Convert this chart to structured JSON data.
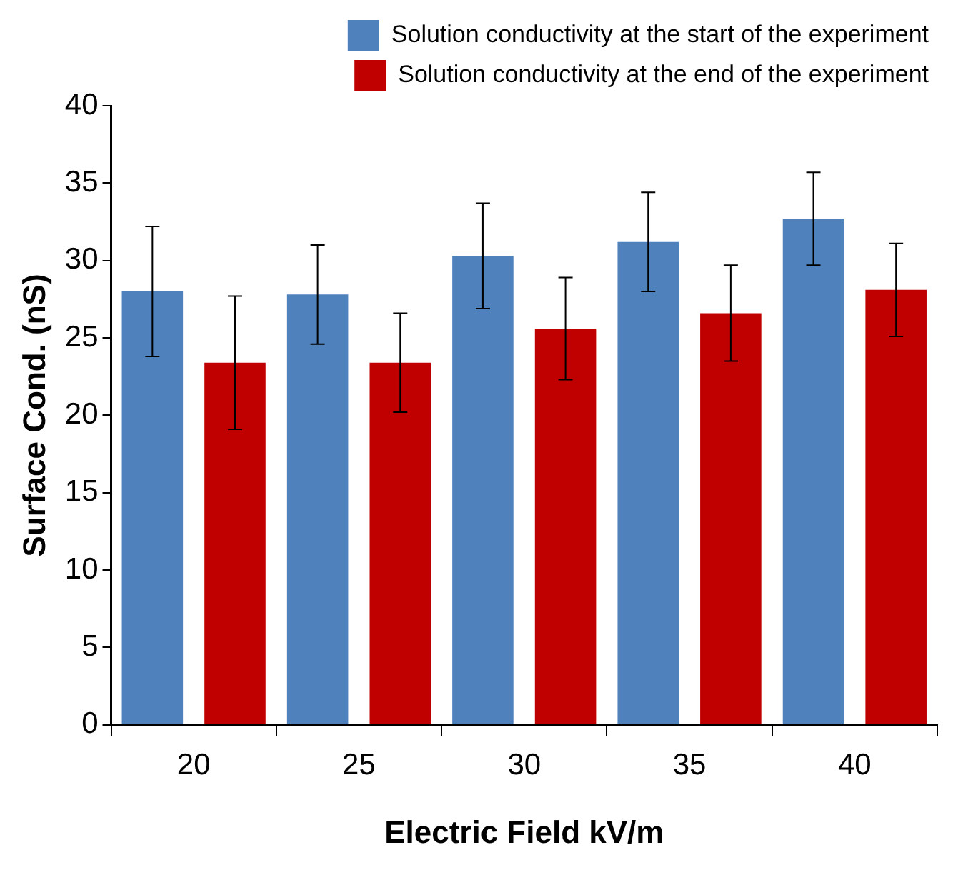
{
  "chart_data": {
    "type": "bar",
    "xlabel": "Electric Field kV/m",
    "ylabel": "Surface Cond. (nS)",
    "categories": [
      "20",
      "25",
      "30",
      "35",
      "40"
    ],
    "series": [
      {
        "name": "Solution conductivity at the start of the experiment",
        "color": "#4f81bd",
        "values": [
          28.0,
          27.8,
          30.3,
          31.2,
          32.7
        ],
        "errors": [
          4.2,
          3.2,
          3.4,
          3.2,
          3.0
        ]
      },
      {
        "name": "Solution conductivity at the end of the experiment",
        "color": "#c00000",
        "values": [
          23.4,
          23.4,
          25.6,
          26.6,
          28.1
        ],
        "errors": [
          4.3,
          3.2,
          3.3,
          3.1,
          3.0
        ]
      }
    ],
    "ylim": [
      0,
      40
    ],
    "yticks": [
      0,
      5,
      10,
      15,
      20,
      25,
      30,
      35,
      40
    ],
    "grid": false,
    "legend": "top"
  }
}
